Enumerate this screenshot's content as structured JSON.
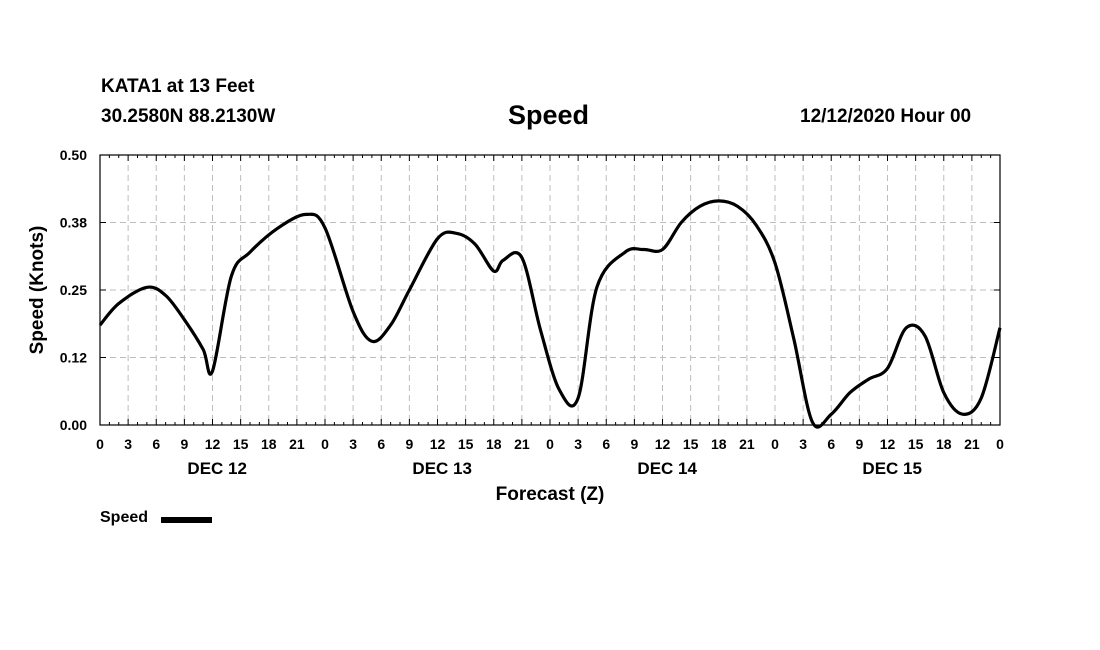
{
  "header": {
    "station": "KATA1 at 13 Feet",
    "coordinates": "30.2580N 88.2130W",
    "datetime": "12/12/2020 Hour 00"
  },
  "legend": {
    "label": "Speed",
    "color": "#000000"
  },
  "chart_data": {
    "type": "line",
    "title": "Speed",
    "xlabel": "Forecast (Z)",
    "ylabel": "Speed (Knots)",
    "ylim": [
      0,
      0.5
    ],
    "xlim": [
      0,
      96
    ],
    "y_ticks": [
      "0.00",
      "0.12",
      "0.25",
      "0.38",
      "0.50"
    ],
    "x_tick_labels": [
      "0",
      "3",
      "6",
      "9",
      "12",
      "15",
      "18",
      "21",
      "0",
      "3",
      "6",
      "9",
      "12",
      "15",
      "18",
      "21",
      "0",
      "3",
      "6",
      "9",
      "12",
      "15",
      "18",
      "21",
      "0",
      "3",
      "6",
      "9",
      "12",
      "15",
      "18",
      "21",
      "0"
    ],
    "day_labels": [
      "DEC 12",
      "DEC 13",
      "DEC 14",
      "DEC 15"
    ],
    "grid": true,
    "series": [
      {
        "name": "Speed",
        "color": "#000000",
        "x": [
          0,
          2,
          5,
          7,
          9,
          11,
          12,
          14,
          16,
          19,
          22,
          24,
          27,
          29,
          31,
          33,
          36,
          38,
          40,
          42,
          43,
          45,
          47,
          49,
          51,
          53,
          56,
          58,
          60,
          62,
          64,
          66,
          68,
          70,
          72,
          74,
          76,
          78,
          80,
          82,
          84,
          86,
          88,
          90,
          92,
          94,
          96
        ],
        "y": [
          0.185,
          0.225,
          0.255,
          0.24,
          0.195,
          0.14,
          0.1,
          0.275,
          0.32,
          0.365,
          0.39,
          0.365,
          0.21,
          0.155,
          0.185,
          0.25,
          0.345,
          0.355,
          0.335,
          0.285,
          0.305,
          0.31,
          0.175,
          0.065,
          0.05,
          0.255,
          0.32,
          0.325,
          0.325,
          0.375,
          0.405,
          0.415,
          0.405,
          0.37,
          0.3,
          0.16,
          0.005,
          0.02,
          0.06,
          0.085,
          0.105,
          0.18,
          0.165,
          0.06,
          0.02,
          0.05,
          0.18
        ]
      }
    ]
  }
}
